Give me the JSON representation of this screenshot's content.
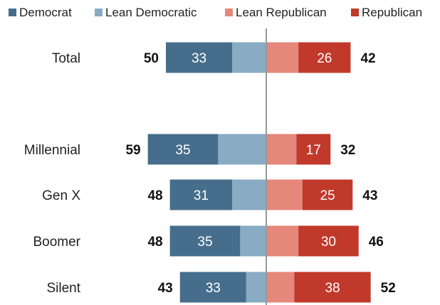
{
  "chart_data": {
    "type": "bar",
    "orientation": "horizontal-diverging",
    "legend": [
      {
        "key": "democrat",
        "label": "Democrat",
        "color": "#466e8c"
      },
      {
        "key": "lean_democratic",
        "label": "Lean Democratic",
        "color": "#89abc4"
      },
      {
        "key": "lean_republican",
        "label": "Lean Republican",
        "color": "#e5877a"
      },
      {
        "key": "republican",
        "label": "Republican",
        "color": "#c0392b"
      }
    ],
    "legend_position": "top",
    "categories": [
      "Total",
      "Millennial",
      "Gen X",
      "Boomer",
      "Silent"
    ],
    "series": [
      {
        "name": "Democrat",
        "values": [
          33,
          35,
          31,
          35,
          33
        ]
      },
      {
        "name": "Lean Democratic",
        "values": [
          17,
          24,
          17,
          13,
          10
        ]
      },
      {
        "name": "Lean Republican",
        "values": [
          16,
          15,
          18,
          16,
          14
        ]
      },
      {
        "name": "Republican",
        "values": [
          26,
          17,
          25,
          30,
          38
        ]
      }
    ],
    "dem_totals": [
      50,
      59,
      48,
      48,
      43
    ],
    "rep_totals": [
      42,
      32,
      43,
      46,
      52
    ],
    "axis_color": "#999999",
    "grid": false
  }
}
